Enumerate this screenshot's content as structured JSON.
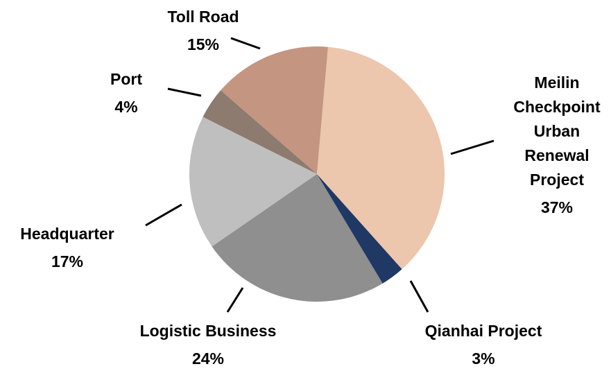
{
  "chart_data": {
    "type": "pie",
    "categories": [
      "Meilin Checkpoint Urban Renewal Project",
      "Qianhai Project",
      "Logistic Business",
      "Headquarter",
      "Port",
      "Toll Road"
    ],
    "values": [
      37,
      3,
      24,
      17,
      4,
      15
    ],
    "value_labels": [
      "37%",
      "3%",
      "24%",
      "17%",
      "4%",
      "15%"
    ],
    "colors": [
      "#ecc6ad",
      "#1f3864",
      "#8f8f8f",
      "#bfbfbf",
      "#8c7b6e",
      "#c49581"
    ]
  }
}
